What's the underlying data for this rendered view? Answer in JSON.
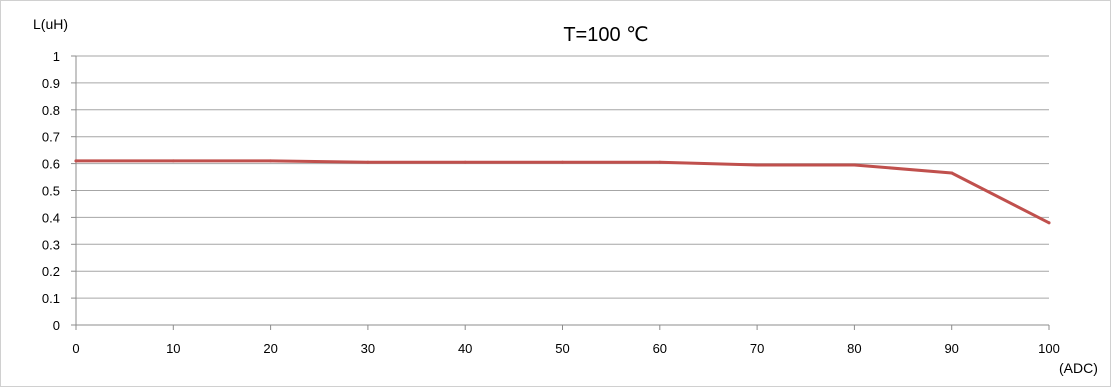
{
  "chart_data": {
    "type": "line",
    "title": "T=100 ℃",
    "xlabel": "(ADC)",
    "ylabel": "L(uH)",
    "xlim": [
      0,
      100
    ],
    "ylim": [
      0,
      1
    ],
    "x_ticks": [
      "0",
      "10",
      "20",
      "30",
      "40",
      "50",
      "60",
      "70",
      "80",
      "90",
      "100"
    ],
    "y_ticks": [
      "0",
      "0.1",
      "0.2",
      "0.3",
      "0.4",
      "0.5",
      "0.6",
      "0.7",
      "0.8",
      "0.9",
      "1"
    ],
    "grid": "horizontal",
    "series": [
      {
        "x": [
          0,
          10,
          20,
          30,
          40,
          50,
          60,
          70,
          80,
          90,
          100
        ],
        "values": [
          0.61,
          0.61,
          0.61,
          0.605,
          0.605,
          0.605,
          0.605,
          0.595,
          0.595,
          0.565,
          0.38
        ],
        "color": "#c0504d"
      }
    ]
  }
}
